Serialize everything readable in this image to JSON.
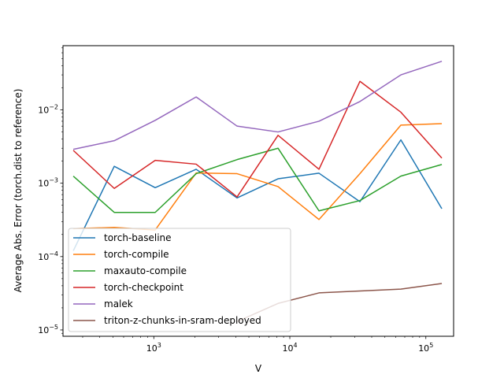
{
  "chart_data": {
    "type": "line",
    "title": "",
    "xlabel": "V",
    "ylabel": "Average Abs. Error (torch.dist to reference)",
    "xscale": "log",
    "yscale": "log",
    "xlim": [
      215,
      160000
    ],
    "ylim": [
      8.2e-06,
      0.075
    ],
    "x_ticks": [
      {
        "value": 1000,
        "base": "10",
        "exp": "3"
      },
      {
        "value": 10000,
        "base": "10",
        "exp": "4"
      },
      {
        "value": 100000,
        "base": "10",
        "exp": "5"
      }
    ],
    "y_ticks": [
      {
        "value": 1e-05,
        "base": "10",
        "exp": "−5"
      },
      {
        "value": 0.0001,
        "base": "10",
        "exp": "−4"
      },
      {
        "value": 0.001,
        "base": "10",
        "exp": "−3"
      },
      {
        "value": 0.01,
        "base": "10",
        "exp": "−2"
      }
    ],
    "grid": false,
    "legend_position": "lower-left",
    "x": [
      256,
      512,
      1024,
      2048,
      4096,
      8192,
      16384,
      32768,
      65536,
      131072
    ],
    "series": [
      {
        "name": "torch-baseline",
        "color": "#1f77b4",
        "values": [
          0.00012,
          0.0017,
          0.00087,
          0.00155,
          0.00063,
          0.00115,
          0.00137,
          0.00056,
          0.0039,
          0.00045
        ]
      },
      {
        "name": "torch-compile",
        "color": "#ff7f0e",
        "values": [
          0.00024,
          0.00025,
          0.00023,
          0.00138,
          0.00135,
          0.0009,
          0.00032,
          0.00135,
          0.0062,
          0.0065
        ]
      },
      {
        "name": "maxauto-compile",
        "color": "#2ca02c",
        "values": [
          0.00125,
          0.0004,
          0.0004,
          0.00135,
          0.0021,
          0.003,
          0.00042,
          0.00058,
          0.00125,
          0.0018
        ]
      },
      {
        "name": "torch-checkpoint",
        "color": "#d62728",
        "values": [
          0.0028,
          0.00085,
          0.00205,
          0.00182,
          0.00065,
          0.0045,
          0.00155,
          0.0245,
          0.0093,
          0.0022
        ]
      },
      {
        "name": "malek",
        "color": "#9467bd",
        "values": [
          0.0029,
          0.0038,
          0.0072,
          0.015,
          0.006,
          0.005,
          0.007,
          0.013,
          0.03,
          0.046
        ]
      },
      {
        "name": "triton-z-chunks-in-sram-deployed",
        "color": "#8c564b",
        "values": [
          null,
          null,
          null,
          null,
          1.3e-05,
          2.3e-05,
          3.2e-05,
          3.4e-05,
          3.6e-05,
          4.3e-05
        ]
      }
    ]
  }
}
